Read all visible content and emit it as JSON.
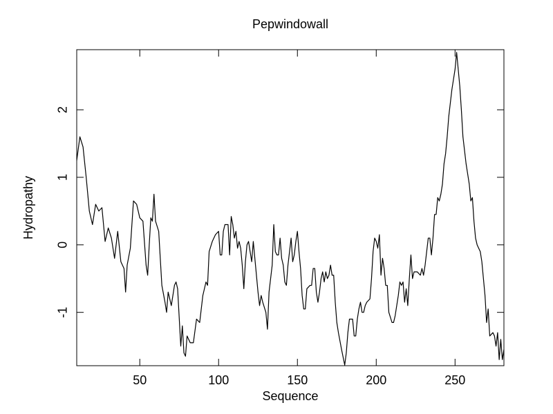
{
  "chart_data": {
    "type": "line",
    "title": "Pepwindowall",
    "x_label": "Sequence",
    "y_label": "Hydropathy",
    "xlim": [
      10,
      281
    ],
    "ylim": [
      -1.79,
      2.89
    ],
    "xticks": [
      50,
      100,
      150,
      200,
      250
    ],
    "yticks": [
      -1,
      0,
      1,
      2
    ],
    "x": [
      10,
      12,
      14,
      16,
      18,
      20,
      22,
      24,
      26,
      28,
      30,
      32,
      34,
      36,
      38,
      40,
      41,
      42,
      44,
      46,
      48,
      50,
      52,
      54,
      55,
      56,
      57,
      58,
      59,
      60,
      62,
      64,
      66,
      67,
      68,
      70,
      72,
      73,
      74,
      76,
      77,
      78,
      79,
      80,
      82,
      84,
      86,
      88,
      90,
      92,
      93,
      94,
      96,
      98,
      100,
      101,
      102,
      103,
      104,
      106,
      107,
      108,
      109,
      110,
      111,
      112,
      113,
      114,
      115,
      116,
      117,
      118,
      119,
      120,
      121,
      122,
      123,
      125,
      126,
      127,
      128,
      130,
      131,
      132,
      134,
      135,
      136,
      137,
      138,
      139,
      140,
      141,
      142,
      143,
      144,
      146,
      147,
      148,
      149,
      150,
      151,
      152,
      153,
      154,
      155,
      156,
      158,
      159,
      160,
      161,
      162,
      163,
      164,
      165,
      166,
      167,
      168,
      169,
      170,
      171,
      172,
      173,
      174,
      175,
      176,
      178,
      180,
      181,
      182,
      183,
      185,
      186,
      187,
      188,
      189,
      190,
      191,
      192,
      193,
      194,
      196,
      197,
      198,
      199,
      200,
      201,
      202,
      203,
      204,
      205,
      206,
      207,
      208,
      210,
      211,
      212,
      214,
      215,
      216,
      217,
      218,
      219,
      220,
      221,
      222,
      223,
      224,
      226,
      228,
      229,
      230,
      231,
      232,
      233,
      234,
      235,
      236,
      237,
      238,
      239,
      240,
      241,
      242,
      243,
      244,
      245,
      246,
      247,
      248,
      249,
      250,
      251,
      252,
      253,
      254,
      255,
      256,
      257,
      258,
      259,
      260,
      261,
      262,
      263,
      264,
      265,
      266,
      267,
      268,
      269,
      270,
      271,
      272,
      274,
      275,
      276,
      277,
      278,
      279,
      280,
      281
    ],
    "series": [
      {
        "color": "#000000",
        "values": [
          1.25,
          1.6,
          1.45,
          1.0,
          0.5,
          0.3,
          0.6,
          0.5,
          0.55,
          0.05,
          0.25,
          0.1,
          -0.2,
          0.2,
          -0.25,
          -0.35,
          -0.7,
          -0.3,
          -0.05,
          0.65,
          0.6,
          0.4,
          0.35,
          -0.3,
          -0.45,
          0.0,
          0.4,
          0.35,
          0.75,
          0.35,
          0.2,
          -0.6,
          -0.85,
          -1.0,
          -0.7,
          -0.9,
          -0.6,
          -0.55,
          -0.65,
          -1.5,
          -1.2,
          -1.6,
          -1.65,
          -1.35,
          -1.45,
          -1.45,
          -1.1,
          -1.15,
          -0.75,
          -0.55,
          -0.6,
          -0.1,
          0.05,
          0.15,
          0.2,
          -0.15,
          -0.15,
          0.2,
          0.3,
          0.3,
          -0.15,
          0.42,
          0.3,
          0.1,
          0.2,
          -0.05,
          0.05,
          -0.05,
          -0.3,
          -0.65,
          -0.25,
          0.0,
          0.05,
          -0.1,
          -0.25,
          0.05,
          -0.2,
          -0.7,
          -0.9,
          -0.75,
          -0.85,
          -1.0,
          -1.25,
          -0.7,
          -0.3,
          0.3,
          -0.1,
          -0.15,
          -0.15,
          0.1,
          -0.2,
          -0.3,
          -0.55,
          -0.6,
          -0.3,
          0.1,
          -0.25,
          -0.15,
          0.05,
          0.2,
          -0.1,
          -0.35,
          -0.75,
          -0.95,
          -0.95,
          -0.65,
          -0.6,
          -0.6,
          -0.35,
          -0.35,
          -0.7,
          -0.85,
          -0.7,
          -0.5,
          -0.4,
          -0.55,
          -0.4,
          -0.5,
          -0.45,
          -0.3,
          -0.45,
          -0.45,
          -0.85,
          -1.15,
          -1.3,
          -1.55,
          -1.78,
          -1.6,
          -1.3,
          -1.1,
          -1.1,
          -1.35,
          -1.35,
          -1.1,
          -0.95,
          -0.85,
          -1.0,
          -1.0,
          -0.9,
          -0.85,
          -0.8,
          -0.5,
          -0.1,
          0.1,
          0.05,
          -0.05,
          0.15,
          -0.45,
          -0.2,
          -0.35,
          -0.6,
          -0.6,
          -1.0,
          -1.15,
          -1.15,
          -1.05,
          -0.75,
          -0.55,
          -0.6,
          -0.55,
          -0.85,
          -0.65,
          -0.9,
          -0.5,
          -0.15,
          -0.5,
          -0.4,
          -0.4,
          -0.45,
          -0.35,
          -0.45,
          -0.3,
          -0.1,
          0.1,
          0.1,
          -0.15,
          0.1,
          0.45,
          0.45,
          0.7,
          0.65,
          0.75,
          0.9,
          1.2,
          1.35,
          1.6,
          1.9,
          2.1,
          2.3,
          2.45,
          2.6,
          2.85,
          2.6,
          2.35,
          2.0,
          1.6,
          1.4,
          1.2,
          1.05,
          0.9,
          0.65,
          0.7,
          0.35,
          0.1,
          0.0,
          -0.05,
          -0.1,
          -0.25,
          -0.5,
          -0.75,
          -1.15,
          -0.95,
          -1.35,
          -1.3,
          -1.35,
          -1.5,
          -1.3,
          -1.7,
          -1.4,
          -1.7,
          -1.55
        ]
      }
    ]
  }
}
